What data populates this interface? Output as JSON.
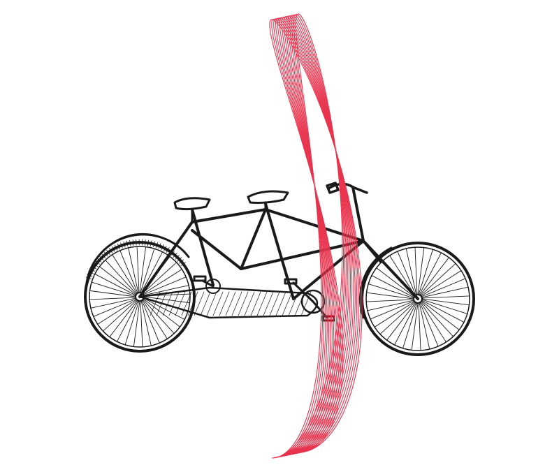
{
  "illustration": {
    "subject": "tandem-bicycle",
    "line_color": "#1a1a1a",
    "ribbon_color": "#e8344e",
    "ribbon_line_count": 14
  }
}
